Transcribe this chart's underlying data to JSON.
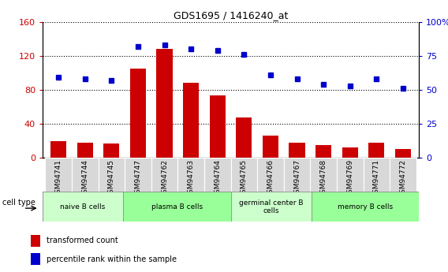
{
  "title": "GDS1695 / 1416240_at",
  "samples": [
    "GSM94741",
    "GSM94744",
    "GSM94745",
    "GSM94747",
    "GSM94762",
    "GSM94763",
    "GSM94764",
    "GSM94765",
    "GSM94766",
    "GSM94767",
    "GSM94768",
    "GSM94769",
    "GSM94771",
    "GSM94772"
  ],
  "bar_values": [
    20,
    18,
    17,
    105,
    128,
    88,
    73,
    47,
    26,
    18,
    15,
    12,
    18,
    10
  ],
  "percentile_values_pct": [
    59,
    58,
    57,
    82,
    83,
    80,
    79,
    76,
    61,
    58,
    54,
    53,
    58,
    51
  ],
  "bar_color": "#cc0000",
  "dot_color": "#0000cc",
  "ylim_left": [
    0,
    160
  ],
  "yticks_left": [
    0,
    40,
    80,
    120,
    160
  ],
  "yticks_right_pct": [
    0,
    25,
    50,
    75,
    100
  ],
  "yticklabels_right": [
    "0",
    "25",
    "50",
    "75",
    "100%"
  ],
  "cell_groups": [
    {
      "label": "naive B cells",
      "start": 0,
      "end": 3,
      "color": "#ccffcc"
    },
    {
      "label": "plasma B cells",
      "start": 3,
      "end": 7,
      "color": "#99ff99"
    },
    {
      "label": "germinal center B\ncells",
      "start": 7,
      "end": 10,
      "color": "#ccffcc"
    },
    {
      "label": "memory B cells",
      "start": 10,
      "end": 14,
      "color": "#99ff99"
    }
  ],
  "legend_bar_label": "transformed count",
  "legend_dot_label": "percentile rank within the sample",
  "cell_type_label": "cell type",
  "ticklabel_bg": "#d8d8d8"
}
